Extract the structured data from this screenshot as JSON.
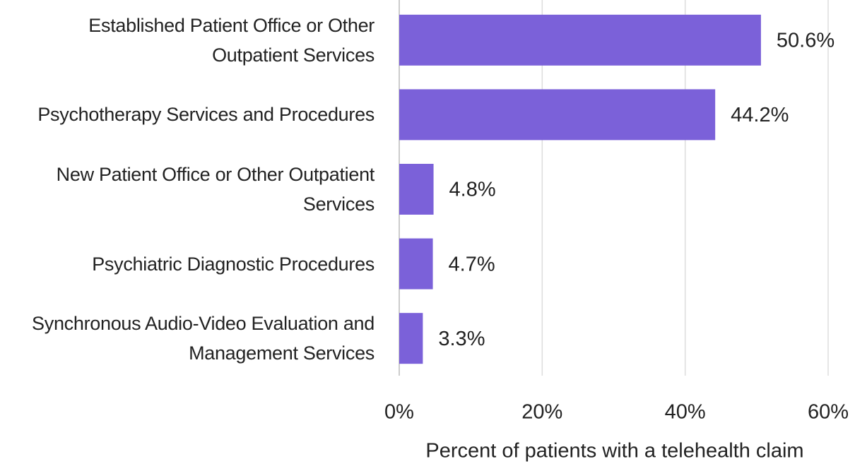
{
  "chart_data": {
    "type": "bar",
    "orientation": "horizontal",
    "categories": [
      "Established Patient Office or Other Outpatient Services",
      "Psychotherapy Services and Procedures",
      "New Patient Office or Other Outpatient Services",
      "Psychiatric Diagnostic Procedures",
      "Synchronous Audio-Video Evaluation and Management Services"
    ],
    "values": [
      50.6,
      44.2,
      4.8,
      4.7,
      3.3
    ],
    "value_labels": [
      "50.6%",
      "44.2%",
      "4.8%",
      "4.7%",
      "3.3%"
    ],
    "color": "#7b61d9",
    "xlabel": "Percent of patients with a telehealth claim",
    "xlim": [
      0,
      60
    ],
    "xticks": [
      {
        "value": 0,
        "label": "0%"
      },
      {
        "value": 20,
        "label": "20%"
      },
      {
        "value": 40,
        "label": "40%"
      },
      {
        "value": 60,
        "label": "60%"
      }
    ],
    "grid": true
  }
}
